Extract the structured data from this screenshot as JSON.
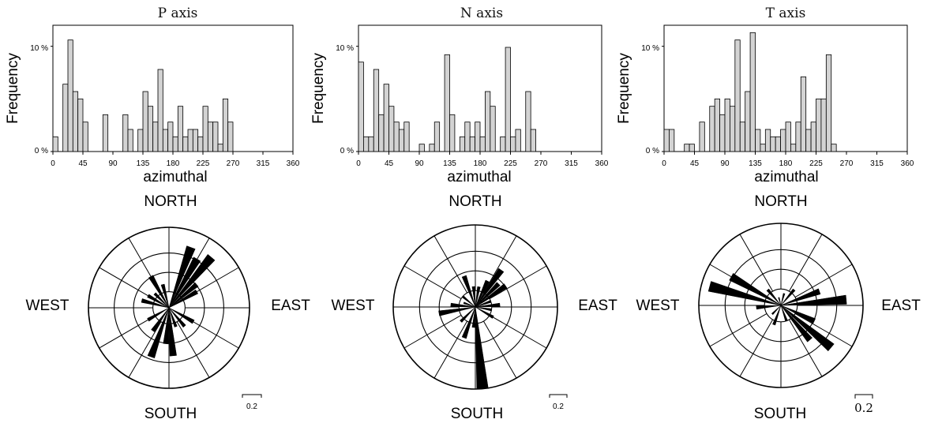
{
  "chart_data": [
    {
      "type": "bar",
      "title": "P axis",
      "xlabel": "azimuthal",
      "ylabel": "Frequency",
      "xlim": [
        0,
        360
      ],
      "ylim": [
        0,
        12
      ],
      "x_ticks": [
        "0",
        "45",
        "90",
        "135",
        "180",
        "225",
        "270",
        "315",
        "360"
      ],
      "y_ticks": [
        "0 %",
        "10 %"
      ],
      "bin_width_deg": 7.5,
      "bins": [
        [
          0,
          1.4
        ],
        [
          15,
          6.4
        ],
        [
          22.5,
          10.6
        ],
        [
          30,
          5.7
        ],
        [
          37.5,
          5.0
        ],
        [
          45,
          2.8
        ],
        [
          75,
          3.5
        ],
        [
          105,
          3.5
        ],
        [
          112.5,
          2.1
        ],
        [
          127.5,
          2.1
        ],
        [
          135,
          5.7
        ],
        [
          142.5,
          4.3
        ],
        [
          150,
          2.8
        ],
        [
          157.5,
          7.8
        ],
        [
          165,
          2.1
        ],
        [
          172.5,
          2.8
        ],
        [
          180,
          1.4
        ],
        [
          187.5,
          4.3
        ],
        [
          195,
          1.4
        ],
        [
          202.5,
          2.1
        ],
        [
          210,
          2.1
        ],
        [
          217.5,
          1.4
        ],
        [
          225,
          4.3
        ],
        [
          232.5,
          2.8
        ],
        [
          240,
          2.8
        ],
        [
          247.5,
          0.7
        ],
        [
          255,
          5.0
        ],
        [
          262.5,
          2.8
        ]
      ]
    },
    {
      "type": "bar",
      "title": "N axis",
      "xlabel": "azimuthal",
      "ylabel": "Frequency",
      "xlim": [
        0,
        360
      ],
      "ylim": [
        0,
        12
      ],
      "x_ticks": [
        "0",
        "45",
        "90",
        "135",
        "180",
        "225",
        "270",
        "315",
        "360"
      ],
      "y_ticks": [
        "0 %",
        "10 %"
      ],
      "bin_width_deg": 7.5,
      "bins": [
        [
          0,
          8.5
        ],
        [
          7.5,
          1.4
        ],
        [
          15,
          1.4
        ],
        [
          22.5,
          7.8
        ],
        [
          30,
          3.5
        ],
        [
          37.5,
          6.4
        ],
        [
          45,
          4.3
        ],
        [
          52.5,
          2.8
        ],
        [
          60,
          2.1
        ],
        [
          67.5,
          2.8
        ],
        [
          90,
          0.7
        ],
        [
          105,
          0.7
        ],
        [
          112.5,
          2.8
        ],
        [
          127.5,
          9.2
        ],
        [
          135,
          3.5
        ],
        [
          150,
          1.4
        ],
        [
          157.5,
          2.8
        ],
        [
          165,
          1.4
        ],
        [
          172.5,
          2.8
        ],
        [
          180,
          1.4
        ],
        [
          187.5,
          5.7
        ],
        [
          195,
          4.3
        ],
        [
          210,
          1.4
        ],
        [
          217.5,
          9.9
        ],
        [
          225,
          1.4
        ],
        [
          232.5,
          2.1
        ],
        [
          247.5,
          5.7
        ],
        [
          255,
          2.1
        ]
      ]
    },
    {
      "type": "bar",
      "title": "T axis",
      "xlabel": "azimuthal",
      "ylabel": "Frequency",
      "xlim": [
        0,
        360
      ],
      "ylim": [
        0,
        12
      ],
      "x_ticks": [
        "0",
        "45",
        "90",
        "135",
        "180",
        "225",
        "270",
        "315",
        "360"
      ],
      "y_ticks": [
        "0 %",
        "10 %"
      ],
      "bin_width_deg": 7.5,
      "bins": [
        [
          0,
          2.1
        ],
        [
          7.5,
          2.1
        ],
        [
          30,
          0.7
        ],
        [
          37.5,
          0.7
        ],
        [
          52.5,
          2.8
        ],
        [
          67.5,
          4.3
        ],
        [
          75,
          5.0
        ],
        [
          82.5,
          3.5
        ],
        [
          90,
          5.0
        ],
        [
          97.5,
          4.3
        ],
        [
          105,
          10.6
        ],
        [
          112.5,
          2.8
        ],
        [
          120,
          5.7
        ],
        [
          127.5,
          11.3
        ],
        [
          135,
          2.1
        ],
        [
          142.5,
          0.7
        ],
        [
          150,
          2.1
        ],
        [
          157.5,
          1.4
        ],
        [
          165,
          1.4
        ],
        [
          172.5,
          2.1
        ],
        [
          180,
          2.8
        ],
        [
          187.5,
          0.7
        ],
        [
          195,
          2.8
        ],
        [
          202.5,
          7.1
        ],
        [
          210,
          2.1
        ],
        [
          217.5,
          2.8
        ],
        [
          225,
          5.0
        ],
        [
          232.5,
          5.0
        ],
        [
          240,
          9.2
        ],
        [
          247.5,
          0.7
        ]
      ]
    }
  ],
  "rose_diagrams": [
    {
      "labels": {
        "north": "NORTH",
        "south": "SOUTH",
        "east": "EAST",
        "west": "WEST"
      },
      "scale_label": "0.2",
      "petals": [
        [
          20,
          0.8
        ],
        [
          30,
          0.7
        ],
        [
          40,
          0.82
        ],
        [
          50,
          0.45
        ],
        [
          60,
          0.4
        ],
        [
          120,
          0.35
        ],
        [
          140,
          0.3
        ],
        [
          160,
          0.25
        ],
        [
          175,
          0.6
        ],
        [
          185,
          0.45
        ],
        [
          200,
          0.65
        ],
        [
          215,
          0.35
        ],
        [
          240,
          0.3
        ],
        [
          285,
          0.35
        ],
        [
          300,
          0.3
        ],
        [
          315,
          0.25
        ],
        [
          330,
          0.45
        ],
        [
          345,
          0.3
        ]
      ]
    },
    {
      "labels": {
        "north": "NORTH",
        "south": "SOUTH",
        "east": "EAST",
        "west": "WEST"
      },
      "scale_label": "0.2",
      "petals": [
        [
          10,
          0.25
        ],
        [
          25,
          0.35
        ],
        [
          35,
          0.55
        ],
        [
          45,
          0.4
        ],
        [
          55,
          0.45
        ],
        [
          70,
          0.2
        ],
        [
          85,
          0.3
        ],
        [
          100,
          0.2
        ],
        [
          120,
          0.25
        ],
        [
          175,
          1.0
        ],
        [
          185,
          0.25
        ],
        [
          200,
          0.4
        ],
        [
          225,
          0.25
        ],
        [
          260,
          0.45
        ],
        [
          275,
          0.3
        ],
        [
          290,
          0.15
        ],
        [
          310,
          0.2
        ],
        [
          340,
          0.4
        ],
        [
          355,
          0.25
        ]
      ]
    },
    {
      "labels": {
        "north": "NORTH",
        "south": "SOUTH",
        "east": "EAST",
        "west": "WEST"
      },
      "scale_label": "0.2",
      "petals": [
        [
          15,
          0.15
        ],
        [
          40,
          0.25
        ],
        [
          70,
          0.5
        ],
        [
          85,
          0.8
        ],
        [
          115,
          0.45
        ],
        [
          130,
          0.8
        ],
        [
          140,
          0.55
        ],
        [
          160,
          0.2
        ],
        [
          200,
          0.25
        ],
        [
          225,
          0.15
        ],
        [
          265,
          0.3
        ],
        [
          285,
          0.9
        ],
        [
          300,
          0.7
        ],
        [
          320,
          0.25
        ],
        [
          345,
          0.1
        ]
      ]
    }
  ]
}
